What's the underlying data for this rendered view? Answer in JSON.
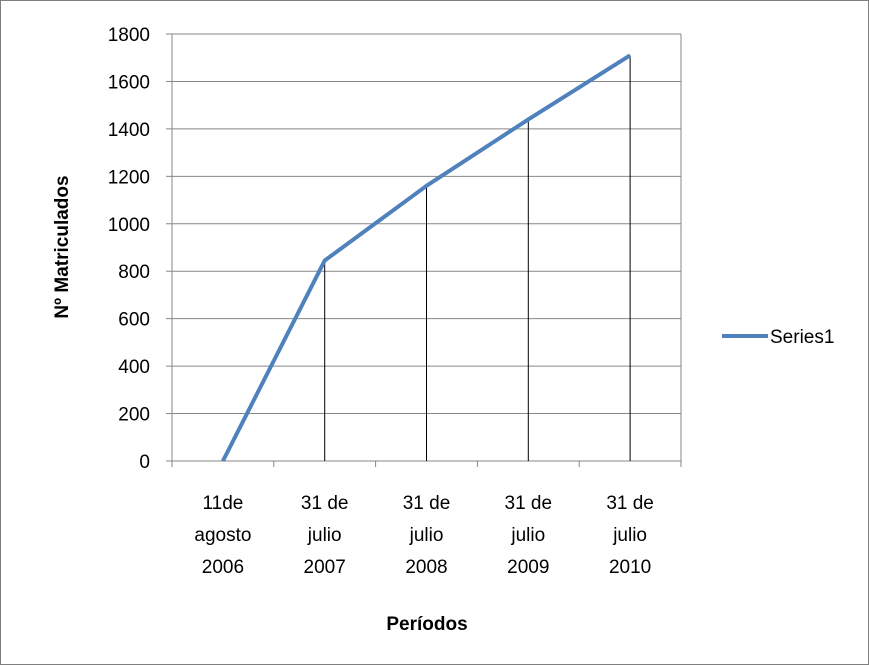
{
  "chart_data": {
    "type": "line",
    "title": "",
    "xlabel": "Períodos",
    "ylabel": "Nº Matriculados",
    "categories": [
      [
        "11de",
        "agosto",
        "2006"
      ],
      [
        "31 de",
        "julio",
        "2007"
      ],
      [
        "31 de",
        "julio",
        "2008"
      ],
      [
        "31 de",
        "julio",
        "2009"
      ],
      [
        "31 de",
        "julio",
        "2010"
      ]
    ],
    "series": [
      {
        "name": "Series1",
        "values": [
          0,
          845,
          1160,
          1440,
          1710
        ],
        "color": "#4f81bd"
      }
    ],
    "ylim": [
      0,
      1800
    ],
    "yticks": [
      0,
      200,
      400,
      600,
      800,
      1000,
      1200,
      1400,
      1600,
      1800
    ],
    "grid": true,
    "drop_lines": true,
    "legend": "right"
  }
}
